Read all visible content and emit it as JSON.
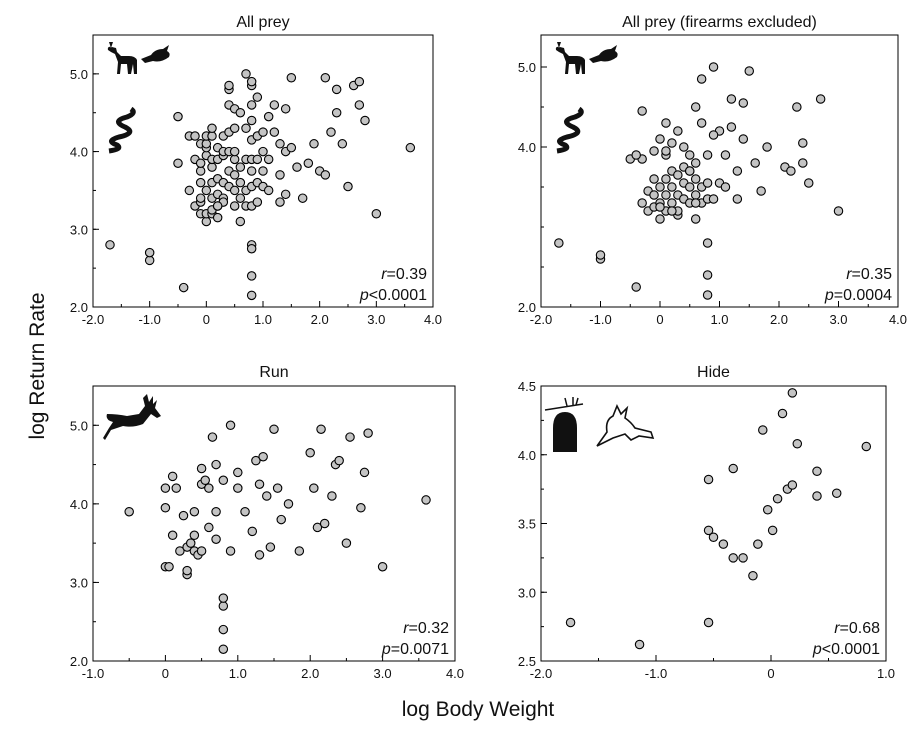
{
  "axis_titles": {
    "x": "log Body Weight",
    "y": "log Return Rate"
  },
  "chart_data": [
    {
      "type": "scatter",
      "title": "All prey",
      "xlim": [
        -2.0,
        4.0
      ],
      "ylim": [
        2.0,
        5.5
      ],
      "x_ticks": [
        "-2.0",
        "-1.0",
        "0",
        "1.0",
        "2.0",
        "3.0",
        "4.0"
      ],
      "y_ticks": [
        "2.0",
        "3.0",
        "4.0",
        "5.0"
      ],
      "stat_r": "r=0.39",
      "stat_p": "p<0.0001",
      "icons": [
        "deer-icon",
        "bird-icon",
        "snake-icon"
      ],
      "x": [
        -1.7,
        -1.0,
        -1.0,
        -0.4,
        -0.5,
        -0.5,
        -0.3,
        -0.3,
        -0.2,
        -0.2,
        -0.2,
        -0.1,
        -0.1,
        -0.1,
        -0.1,
        -0.1,
        -0.1,
        -0.1,
        0.0,
        0.0,
        0.0,
        0.0,
        0.0,
        0.0,
        0.0,
        0.1,
        0.1,
        0.1,
        0.1,
        0.1,
        0.1,
        0.1,
        0.1,
        0.2,
        0.2,
        0.2,
        0.2,
        0.2,
        0.2,
        0.3,
        0.3,
        0.3,
        0.3,
        0.3,
        0.3,
        0.4,
        0.4,
        0.4,
        0.4,
        0.4,
        0.4,
        0.4,
        0.5,
        0.5,
        0.5,
        0.5,
        0.5,
        0.5,
        0.5,
        0.6,
        0.6,
        0.6,
        0.6,
        0.6,
        0.7,
        0.7,
        0.7,
        0.7,
        0.7,
        0.8,
        0.8,
        0.8,
        0.8,
        0.8,
        0.8,
        0.8,
        0.8,
        0.8,
        0.8,
        0.9,
        0.9,
        0.9,
        0.9,
        0.9,
        1.0,
        1.0,
        1.0,
        1.0,
        1.1,
        1.1,
        1.1,
        1.2,
        1.2,
        1.3,
        1.3,
        1.3,
        1.4,
        1.4,
        1.4,
        1.5,
        1.5,
        1.6,
        1.7,
        1.8,
        1.9,
        2.0,
        2.1,
        2.1,
        2.2,
        2.3,
        2.3,
        2.4,
        2.5,
        2.6,
        2.7,
        2.7,
        2.8,
        3.0,
        3.6,
        0.2,
        0.8,
        0.8,
        0.8
      ],
      "y": [
        2.8,
        2.6,
        2.7,
        2.25,
        4.45,
        3.85,
        3.5,
        4.2,
        3.3,
        3.9,
        4.2,
        3.2,
        3.35,
        3.4,
        3.6,
        3.75,
        3.85,
        4.1,
        3.1,
        3.2,
        3.5,
        3.95,
        4.05,
        4.1,
        4.2,
        3.2,
        3.25,
        3.4,
        3.6,
        3.8,
        3.9,
        4.2,
        4.3,
        3.3,
        3.45,
        3.65,
        3.9,
        4.05,
        3.15,
        3.4,
        3.6,
        3.95,
        4.0,
        4.2,
        3.35,
        3.55,
        3.75,
        4.0,
        4.25,
        4.6,
        4.8,
        4.85,
        3.3,
        3.5,
        3.7,
        3.9,
        4.0,
        4.3,
        4.55,
        3.1,
        3.4,
        3.6,
        3.8,
        4.5,
        3.3,
        3.5,
        3.9,
        4.3,
        5.0,
        2.15,
        2.4,
        2.8,
        3.3,
        3.55,
        3.9,
        4.15,
        4.4,
        4.6,
        4.85,
        3.35,
        3.6,
        3.9,
        4.2,
        4.7,
        3.55,
        3.75,
        4.0,
        4.25,
        3.5,
        3.9,
        4.45,
        4.25,
        4.6,
        3.35,
        3.7,
        4.1,
        3.45,
        4.0,
        4.55,
        4.05,
        4.95,
        3.8,
        3.4,
        3.85,
        4.1,
        3.75,
        3.7,
        4.95,
        4.25,
        4.5,
        4.8,
        4.1,
        3.55,
        4.85,
        4.6,
        4.9,
        4.4,
        3.2,
        4.05,
        3.3,
        3.75,
        4.9,
        2.75
      ],
      "series": [
        {
          "name": "",
          "values_key": "x,y"
        }
      ]
    },
    {
      "type": "scatter",
      "title": "All prey (firearms excluded)",
      "xlim": [
        -2.0,
        4.0
      ],
      "ylim": [
        2.0,
        5.4
      ],
      "x_ticks": [
        "-2.0",
        "-1.0",
        "0",
        "1.0",
        "2.0",
        "3.0",
        "4.0"
      ],
      "y_ticks": [
        "2.0",
        "4.0",
        "5.0"
      ],
      "stat_r": "r=0.35",
      "stat_p": "p=0.0004",
      "icons": [
        "deer-icon",
        "bird-icon",
        "snake-icon"
      ],
      "x": [
        -1.7,
        -1.0,
        -1.0,
        -0.4,
        -0.3,
        -0.3,
        -0.3,
        -0.2,
        -0.2,
        -0.1,
        -0.1,
        -0.1,
        -0.1,
        0.0,
        0.0,
        0.0,
        0.0,
        0.1,
        0.1,
        0.1,
        0.1,
        0.1,
        0.2,
        0.2,
        0.2,
        0.2,
        0.3,
        0.3,
        0.3,
        0.3,
        0.4,
        0.4,
        0.4,
        0.4,
        0.5,
        0.5,
        0.5,
        0.5,
        0.6,
        0.6,
        0.6,
        0.6,
        0.6,
        0.7,
        0.7,
        0.7,
        0.8,
        0.8,
        0.8,
        0.8,
        0.8,
        0.8,
        0.9,
        0.9,
        1.0,
        1.0,
        1.1,
        1.1,
        1.2,
        1.3,
        1.3,
        1.4,
        1.4,
        1.5,
        1.6,
        1.7,
        1.8,
        2.1,
        2.2,
        2.3,
        2.4,
        2.4,
        2.5,
        2.7,
        3.0,
        -0.5,
        -0.4,
        0.1,
        0.3,
        0.5,
        0.7,
        0.9,
        1.2,
        0.6,
        0.2,
        0.0
      ],
      "y": [
        2.8,
        2.6,
        2.65,
        2.25,
        3.3,
        3.85,
        4.45,
        3.2,
        3.45,
        3.25,
        3.4,
        3.6,
        3.95,
        3.1,
        3.3,
        3.5,
        4.1,
        3.2,
        3.4,
        3.6,
        3.9,
        4.3,
        3.3,
        3.5,
        3.7,
        4.05,
        3.15,
        3.4,
        3.65,
        4.2,
        3.35,
        3.55,
        3.75,
        4.0,
        3.3,
        3.5,
        3.7,
        3.9,
        3.1,
        3.4,
        3.6,
        3.8,
        4.5,
        3.3,
        3.5,
        4.3,
        2.15,
        2.4,
        2.8,
        3.35,
        3.55,
        3.9,
        3.35,
        5.0,
        3.55,
        4.2,
        3.5,
        3.9,
        4.25,
        3.35,
        3.7,
        4.1,
        4.55,
        4.95,
        3.8,
        3.45,
        4.0,
        3.75,
        3.7,
        4.5,
        3.8,
        4.05,
        3.55,
        4.6,
        3.2,
        3.85,
        3.9,
        3.95,
        3.2,
        3.7,
        4.85,
        4.15,
        4.6,
        3.3,
        3.2,
        3.25
      ],
      "series": [
        {
          "name": "",
          "values_key": "x,y"
        }
      ]
    },
    {
      "type": "scatter",
      "title": "Run",
      "xlim": [
        -1.0,
        4.0
      ],
      "ylim": [
        2.0,
        5.5
      ],
      "x_ticks": [
        "-1.0",
        "0",
        "1.0",
        "2.0",
        "3.0",
        "4.0"
      ],
      "y_ticks": [
        "2.0",
        "3.0",
        "4.0",
        "5.0"
      ],
      "stat_r": "r=0.32",
      "stat_p": "p=0.0071",
      "icons": [
        "running-deer-icon"
      ],
      "x": [
        -0.5,
        0.0,
        0.0,
        0.0,
        0.05,
        0.1,
        0.1,
        0.15,
        0.2,
        0.25,
        0.3,
        0.3,
        0.3,
        0.35,
        0.4,
        0.4,
        0.4,
        0.45,
        0.5,
        0.5,
        0.5,
        0.55,
        0.6,
        0.6,
        0.65,
        0.7,
        0.7,
        0.7,
        0.8,
        0.8,
        0.8,
        0.8,
        0.8,
        0.9,
        0.9,
        1.0,
        1.0,
        1.1,
        1.2,
        1.25,
        1.3,
        1.3,
        1.35,
        1.4,
        1.45,
        1.5,
        1.55,
        1.6,
        1.7,
        1.85,
        2.0,
        2.05,
        2.1,
        2.15,
        2.2,
        2.3,
        2.35,
        2.4,
        2.5,
        2.55,
        2.7,
        2.75,
        2.8,
        3.0,
        3.6
      ],
      "y": [
        3.9,
        3.2,
        3.95,
        4.2,
        3.2,
        3.6,
        4.35,
        4.2,
        3.4,
        3.85,
        3.1,
        3.15,
        3.45,
        3.5,
        3.4,
        3.6,
        3.9,
        3.35,
        3.4,
        4.25,
        4.45,
        4.3,
        4.2,
        3.7,
        4.85,
        3.55,
        3.9,
        4.5,
        2.15,
        2.4,
        2.7,
        2.8,
        4.3,
        3.4,
        5.0,
        4.4,
        4.2,
        3.9,
        3.65,
        4.55,
        3.35,
        4.25,
        4.6,
        4.1,
        3.45,
        4.95,
        4.2,
        3.8,
        4.0,
        3.4,
        4.65,
        4.2,
        3.7,
        4.95,
        3.75,
        4.1,
        4.5,
        4.55,
        3.5,
        4.85,
        3.95,
        4.4,
        4.9,
        3.2,
        4.05
      ],
      "series": [
        {
          "name": "",
          "values_key": "x,y"
        }
      ]
    },
    {
      "type": "scatter",
      "title": "Hide",
      "xlim": [
        -2.0,
        1.5
      ],
      "ylim": [
        2.5,
        4.5
      ],
      "x_ticks": [
        "-2.0",
        "-1.0",
        "0",
        "1.0"
      ],
      "y_ticks": [
        "2.5",
        "3.0",
        "3.5",
        "4.0",
        "4.5"
      ],
      "stat_r": "r=0.68",
      "stat_p": "p<0.0001",
      "icons": [
        "burrow-icon",
        "rabbit-icon"
      ],
      "x": [
        -1.7,
        -1.0,
        -0.3,
        -0.3,
        -0.3,
        -0.25,
        -0.15,
        -0.05,
        -0.05,
        0.05,
        0.15,
        0.2,
        0.25,
        0.3,
        0.35,
        0.4,
        0.45,
        0.5,
        0.55,
        0.55,
        0.6,
        0.8,
        0.8,
        1.0,
        1.3
      ],
      "y": [
        2.78,
        2.62,
        2.78,
        3.45,
        3.82,
        3.4,
        3.35,
        3.9,
        3.25,
        3.25,
        3.12,
        3.35,
        4.18,
        3.6,
        3.45,
        3.68,
        4.3,
        3.75,
        4.45,
        3.78,
        4.08,
        3.88,
        3.7,
        3.72,
        4.06
      ],
      "series": [
        {
          "name": "",
          "values_key": "x,y"
        }
      ]
    }
  ]
}
